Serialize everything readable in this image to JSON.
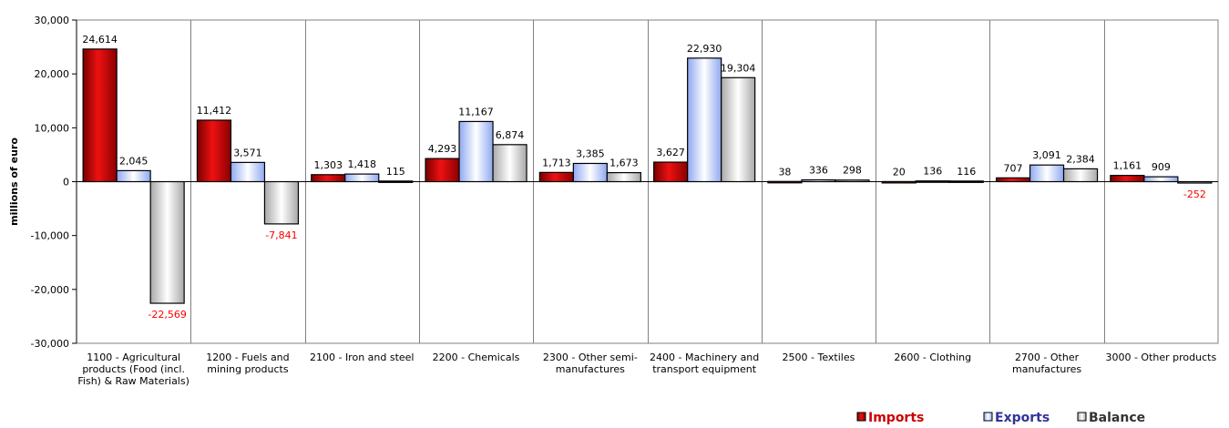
{
  "chart_data": {
    "type": "bar",
    "ylabel": "millions of euro",
    "ylim": [
      -30000,
      30000
    ],
    "yticks": [
      -30000,
      -20000,
      -10000,
      0,
      10000,
      20000,
      30000
    ],
    "ytick_labels": [
      "-30,000",
      "-20,000",
      "-10,000",
      "0",
      "10,000",
      "20,000",
      "30,000"
    ],
    "grid": "vertical category separators",
    "legend_position": "bottom-right",
    "categories": [
      [
        "1100 - Agricultural",
        "products (Food (incl.",
        "Fish) & Raw Materials)"
      ],
      [
        "1200 - Fuels and",
        "mining products"
      ],
      [
        "2100 - Iron and steel"
      ],
      [
        "2200 - Chemicals"
      ],
      [
        "2300 - Other semi-",
        "manufactures"
      ],
      [
        "2400 - Machinery and",
        "transport equipment"
      ],
      [
        "2500 - Textiles"
      ],
      [
        "2600 - Clothing"
      ],
      [
        "2700 - Other",
        "manufactures"
      ],
      [
        "3000 - Other products"
      ]
    ],
    "series": [
      {
        "name": "Imports",
        "color": "#cc0000",
        "legend_color": "#cc0000",
        "values": [
          24614,
          11412,
          1303,
          4293,
          1713,
          3627,
          38,
          20,
          707,
          1161
        ],
        "labels": [
          "24,614",
          "11,412",
          "1,303",
          "4,293",
          "1,713",
          "3,627",
          "38",
          "20",
          "707",
          "1,161"
        ]
      },
      {
        "name": "Exports",
        "color": "#b3c7ff",
        "legend_color": "#333399",
        "values": [
          2045,
          3571,
          1418,
          11167,
          3385,
          22930,
          336,
          136,
          3091,
          909
        ],
        "labels": [
          "2,045",
          "3,571",
          "1,418",
          "11,167",
          "3,385",
          "22,930",
          "336",
          "136",
          "3,091",
          "909"
        ]
      },
      {
        "name": "Balance",
        "color": "#d9d9d9",
        "legend_color": "#333333",
        "values": [
          -22569,
          -7841,
          115,
          6874,
          1673,
          19304,
          298,
          116,
          2384,
          -252
        ],
        "labels": [
          "-22,569",
          "-7,841",
          "115",
          "6,874",
          "1,673",
          "19,304",
          "298",
          "116",
          "2,384",
          "-252"
        ]
      }
    ],
    "negative_label_color": "#ff0000",
    "positive_label_color": "#000000"
  }
}
